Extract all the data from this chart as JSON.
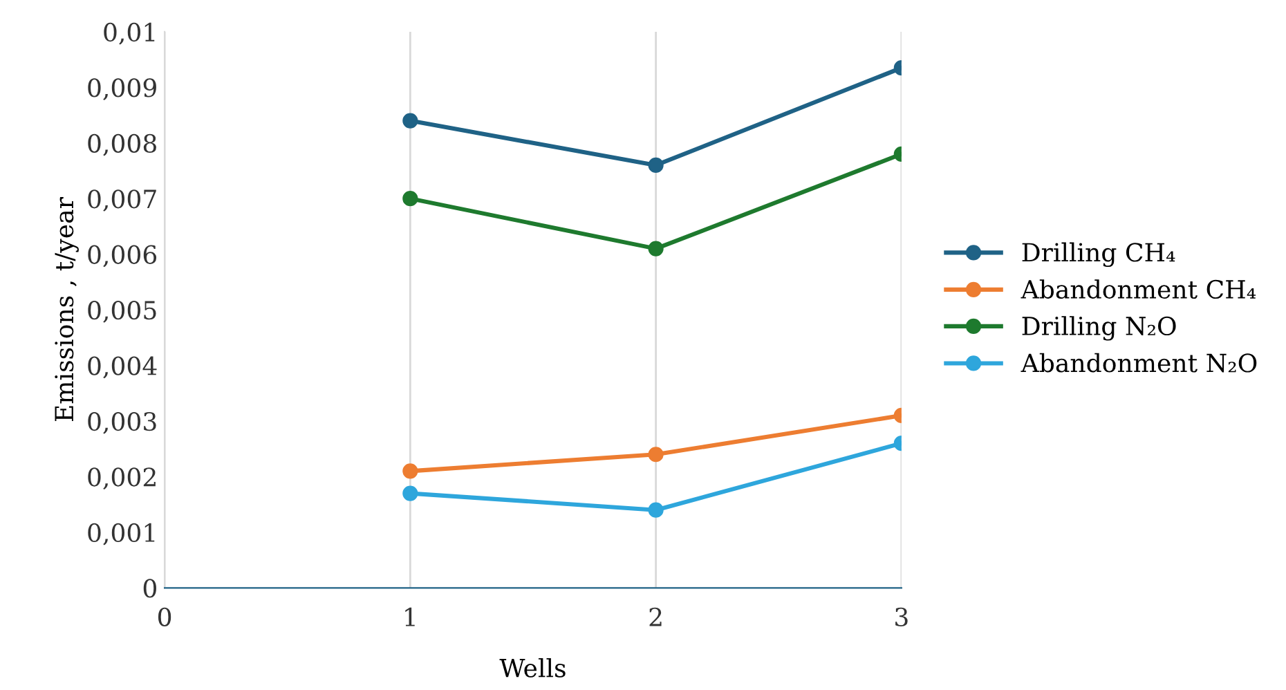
{
  "chart_data": {
    "type": "line",
    "xlabel": "Wells",
    "ylabel": "Emissions , t/year",
    "x": [
      1,
      2,
      3
    ],
    "series": [
      {
        "name": "Drilling CH₄",
        "color": "#1f6286",
        "values": [
          0.0084,
          0.0076,
          0.00935
        ]
      },
      {
        "name": "Abandonment CH₄",
        "color": "#ed7d31",
        "values": [
          0.0021,
          0.0024,
          0.0031
        ]
      },
      {
        "name": "Drilling N₂O",
        "color": "#1e7a2e",
        "values": [
          0.007,
          0.0061,
          0.0078
        ]
      },
      {
        "name": "Abandonment N₂O",
        "color": "#2ea6dc",
        "values": [
          0.0017,
          0.0014,
          0.0026
        ]
      }
    ],
    "xlim": [
      0,
      3
    ],
    "xticks": [
      0,
      1,
      2,
      3
    ],
    "ylim": [
      0,
      0.01
    ],
    "yticks": [
      0,
      {
        "value": 0.001,
        "label": "0,001"
      },
      {
        "value": 0.002,
        "label": "0,002"
      },
      {
        "value": 0.003,
        "label": "0,003"
      },
      {
        "value": 0.004,
        "label": "0,004"
      },
      {
        "value": 0.005,
        "label": "0,005"
      },
      {
        "value": 0.006,
        "label": "0,006"
      },
      {
        "value": 0.007,
        "label": "0,007"
      },
      {
        "value": 0.008,
        "label": "0,008"
      },
      {
        "value": 0.009,
        "label": "0,009"
      },
      {
        "value": 0.01,
        "label": "0,01"
      }
    ],
    "grid": "x",
    "legend": "right",
    "marker": "circle",
    "line_style": "solid"
  }
}
